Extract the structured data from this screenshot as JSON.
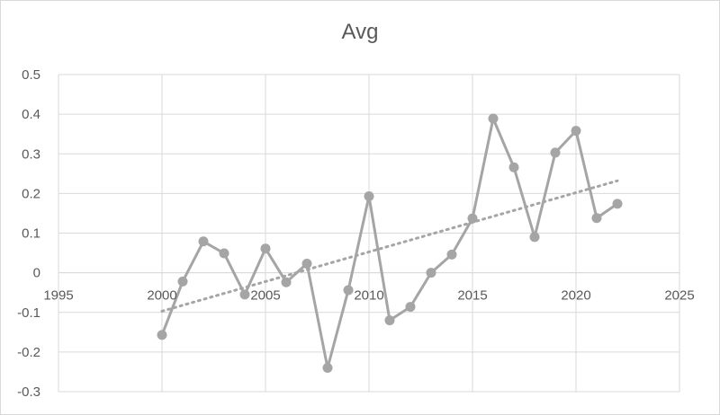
{
  "chart_data": {
    "type": "scatter",
    "title": "Avg",
    "xlabel": "",
    "ylabel": "",
    "xlim": [
      1995,
      2025
    ],
    "ylim": [
      -0.3,
      0.5
    ],
    "x_ticks": [
      1995,
      2000,
      2005,
      2010,
      2015,
      2020,
      2025
    ],
    "y_ticks": [
      -0.3,
      -0.2,
      -0.1,
      0,
      0.1,
      0.2,
      0.3,
      0.4,
      0.5
    ],
    "grid": true,
    "legend": "none",
    "series": [
      {
        "x": [
          2000,
          2001,
          2002,
          2003,
          2004,
          2005,
          2006,
          2007,
          2008,
          2009,
          2010,
          2011,
          2012,
          2013,
          2014,
          2015,
          2016,
          2017,
          2018,
          2019,
          2020,
          2021,
          2022
        ],
        "values": [
          -0.157,
          -0.022,
          0.079,
          0.049,
          -0.055,
          0.061,
          -0.024,
          0.023,
          -0.24,
          -0.044,
          0.193,
          -0.12,
          -0.086,
          0.0,
          0.046,
          0.137,
          0.389,
          0.266,
          0.09,
          0.303,
          0.358,
          0.138,
          0.174
        ],
        "line": true,
        "markers": true,
        "color": "#a5a5a5"
      }
    ],
    "trendline": {
      "type": "linear",
      "x": [
        2000,
        2022
      ],
      "values": [
        -0.097,
        0.232
      ],
      "style": "dotted",
      "color": "#a5a5a5"
    }
  }
}
